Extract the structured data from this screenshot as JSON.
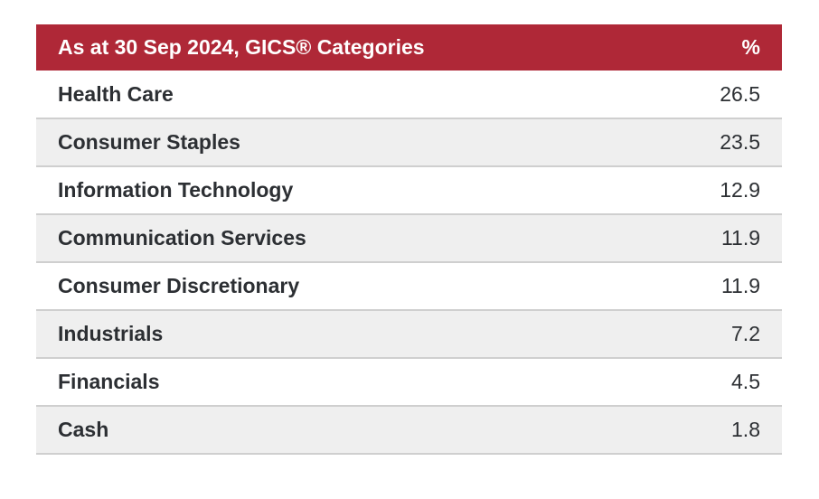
{
  "table": {
    "header": {
      "category_label": "As at 30 Sep 2024, GICS® Categories",
      "percent_label": "%"
    },
    "rows": [
      {
        "category": "Health Care",
        "percent": "26.5"
      },
      {
        "category": "Consumer Staples",
        "percent": "23.5"
      },
      {
        "category": "Information Technology",
        "percent": "12.9"
      },
      {
        "category": "Communication Services",
        "percent": "11.9"
      },
      {
        "category": "Consumer Discretionary",
        "percent": "11.9"
      },
      {
        "category": "Industrials",
        "percent": "7.2"
      },
      {
        "category": "Financials",
        "percent": "4.5"
      },
      {
        "category": "Cash",
        "percent": "1.8"
      }
    ]
  },
  "colors": {
    "header_background": "#af2837",
    "header_text": "#ffffff",
    "row_stripe": "#efefef",
    "row_divider": "#cfcfcf",
    "body_text": "#2c2f33"
  }
}
